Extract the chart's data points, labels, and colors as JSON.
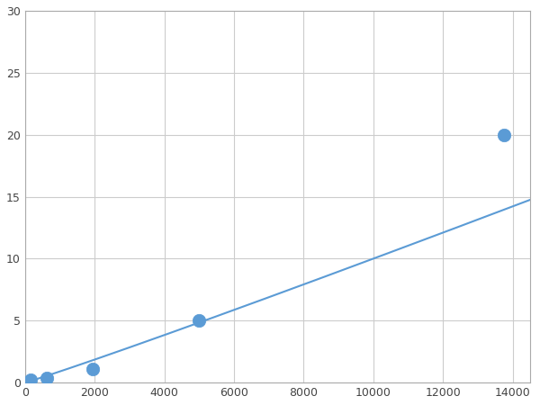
{
  "x_data": [
    156,
    625,
    1953,
    5000,
    13750
  ],
  "y_data": [
    0.2,
    0.4,
    1.1,
    5.0,
    20.0
  ],
  "line_color": "#5b9bd5",
  "marker_color": "#5b9bd5",
  "marker_size": 6,
  "line_width": 1.5,
  "xlim": [
    0,
    14500
  ],
  "ylim": [
    0,
    30
  ],
  "xticks": [
    0,
    2000,
    4000,
    6000,
    8000,
    10000,
    12000,
    14000
  ],
  "yticks": [
    0,
    5,
    10,
    15,
    20,
    25,
    30
  ],
  "grid_color": "#cccccc",
  "background_color": "#ffffff",
  "spine_color": "#aaaaaa"
}
